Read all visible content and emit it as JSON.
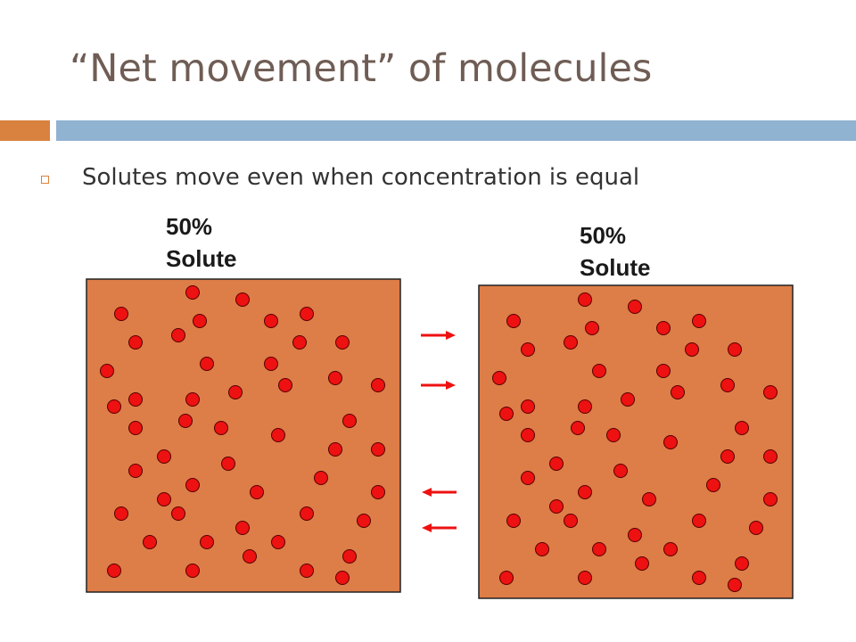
{
  "slide": {
    "title": "“Net movement” of molecules",
    "bullet": "Solutes move even when concentration is equal"
  },
  "containers": [
    {
      "label_line1": "50%",
      "label_line2": "Solute",
      "molecule_count": 50
    },
    {
      "label_line1": "50%",
      "label_line2": "Solute",
      "molecule_count": 49
    }
  ],
  "arrows": [
    {
      "direction": "right"
    },
    {
      "direction": "right"
    },
    {
      "direction": "left"
    },
    {
      "direction": "left"
    }
  ],
  "colors": {
    "title": "#6f5d55",
    "accent_orange": "#d9823f",
    "accent_blue": "#91b3d2",
    "container_fill": "#dd7d47",
    "molecule": "#ee1111",
    "arrow": "#ee1111"
  }
}
